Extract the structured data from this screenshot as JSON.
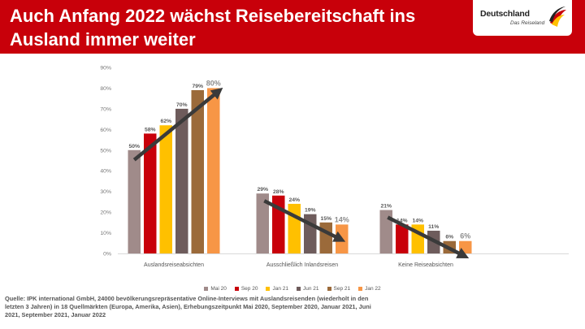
{
  "header": {
    "title": "Auch Anfang 2022 wächst Reisebereitschaft ins Ausland immer weiter",
    "logo_main": "Deutschland",
    "logo_sub": "Das Reiseland",
    "logo_icon": "eagle-flag-icon"
  },
  "colors": {
    "header_bg": "#c8000a",
    "arrow": "#3a3a3a"
  },
  "chart_data": {
    "type": "bar",
    "categories": [
      "Auslandsreiseabsichten",
      "Ausschließlich Inlandsreisen",
      "Keine Reiseabsichten"
    ],
    "ylim": [
      0,
      90
    ],
    "yticks": [
      "0%",
      "10%",
      "20%",
      "30%",
      "40%",
      "50%",
      "60%",
      "70%",
      "80%",
      "90%"
    ],
    "grid": false,
    "legend_position": "bottom",
    "series": [
      {
        "name": "Mai 20",
        "color": "#a08b8a",
        "values": [
          50,
          29,
          21
        ],
        "labels": [
          "50%",
          "29%",
          "21%"
        ]
      },
      {
        "name": "Sep 20",
        "color": "#c8000a",
        "values": [
          58,
          28,
          14
        ],
        "labels": [
          "58%",
          "28%",
          "14%"
        ]
      },
      {
        "name": "Jan 21",
        "color": "#ffc000",
        "values": [
          62,
          24,
          14
        ],
        "labels": [
          "62%",
          "24%",
          "14%"
        ]
      },
      {
        "name": "Jun 21",
        "color": "#6e5c5c",
        "values": [
          70,
          19,
          11
        ],
        "labels": [
          "70%",
          "19%",
          "11%"
        ]
      },
      {
        "name": "Sep 21",
        "color": "#9b6a3a",
        "values": [
          79,
          15,
          6
        ],
        "labels": [
          "79%",
          "15%",
          "6%"
        ]
      },
      {
        "name": "Jan 22",
        "color": "#f79646",
        "values": [
          80,
          14,
          6
        ],
        "labels": [
          "80%",
          "14%",
          "6%"
        ]
      }
    ],
    "trend_arrows": [
      {
        "category": 0,
        "direction": "up"
      },
      {
        "category": 1,
        "direction": "down"
      },
      {
        "category": 2,
        "direction": "down"
      }
    ]
  },
  "source": {
    "text": "Quelle: IPK international GmbH, 24000 bevölkerungsrepräsentative Online-Interviews mit Auslandsreisenden (wiederholt in den letzten 3 Jahren) in 18 Quellmärkten (Europa, Amerika, Asien), Erhebungszeitpunkt Mai 2020, September 2020, Januar 2021, Juni 2021, September 2021, Januar 2022"
  }
}
